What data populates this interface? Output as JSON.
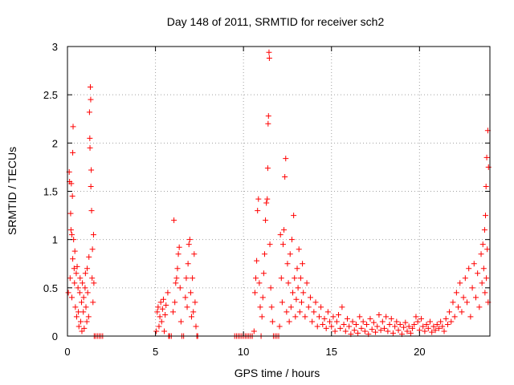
{
  "chart_data": {
    "type": "scatter",
    "title": "Day 148 of 2011, SRMTID for receiver sch2",
    "xlabel": "GPS time / hours",
    "ylabel": "SRMTID / TECUs",
    "xlim": [
      0,
      24
    ],
    "ylim": [
      0,
      3
    ],
    "x_ticks": [
      0,
      5,
      10,
      15,
      20
    ],
    "y_ticks": [
      0,
      0.5,
      1,
      1.5,
      2,
      2.5,
      3
    ],
    "x_tick_labels": [
      "0",
      "5",
      "10",
      "15",
      "20"
    ],
    "y_tick_labels": [
      "0",
      "0.5",
      "1",
      "1.5",
      "2",
      "2.5",
      "3"
    ],
    "grid": true,
    "marker": "plus",
    "color": "#ff0000",
    "series": [
      {
        "name": "sch2",
        "points": [
          [
            0.05,
            0.45
          ],
          [
            0.1,
            1.7
          ],
          [
            0.12,
            1.6
          ],
          [
            0.15,
            0.6
          ],
          [
            0.18,
            1.27
          ],
          [
            0.2,
            1.1
          ],
          [
            0.22,
            1.58
          ],
          [
            0.25,
            0.4
          ],
          [
            0.25,
            1.05
          ],
          [
            0.28,
            1.45
          ],
          [
            0.3,
            0.8
          ],
          [
            0.3,
            1.9
          ],
          [
            0.32,
            2.17
          ],
          [
            0.35,
            1.0
          ],
          [
            0.38,
            0.7
          ],
          [
            0.4,
            0.55
          ],
          [
            0.42,
            0.88
          ],
          [
            0.45,
            0.3
          ],
          [
            0.5,
            0.65
          ],
          [
            0.52,
            0.2
          ],
          [
            0.55,
            0.72
          ],
          [
            0.6,
            0.5
          ],
          [
            0.62,
            0.25
          ],
          [
            0.65,
            0.1
          ],
          [
            0.7,
            0.45
          ],
          [
            0.72,
            0.6
          ],
          [
            0.75,
            0.15
          ],
          [
            0.8,
            0.35
          ],
          [
            0.82,
            0.05
          ],
          [
            0.85,
            0.55
          ],
          [
            0.9,
            0.25
          ],
          [
            0.92,
            0.4
          ],
          [
            0.95,
            0.08
          ],
          [
            1.0,
            0.5
          ],
          [
            1.02,
            0.65
          ],
          [
            1.05,
            0.3
          ],
          [
            1.1,
            0.15
          ],
          [
            1.12,
            0.7
          ],
          [
            1.15,
            0.45
          ],
          [
            1.2,
            0.2
          ],
          [
            1.22,
            0.82
          ],
          [
            1.25,
            2.32
          ],
          [
            1.27,
            2.05
          ],
          [
            1.28,
            1.95
          ],
          [
            1.3,
            2.58
          ],
          [
            1.32,
            2.45
          ],
          [
            1.33,
            1.55
          ],
          [
            1.35,
            1.72
          ],
          [
            1.37,
            1.3
          ],
          [
            1.4,
            0.6
          ],
          [
            1.42,
            0.9
          ],
          [
            1.45,
            0.35
          ],
          [
            1.48,
            1.05
          ],
          [
            1.5,
            0.55
          ],
          [
            1.52,
            0.0
          ],
          [
            1.6,
            0.0
          ],
          [
            1.7,
            0.0
          ],
          [
            1.8,
            0.0
          ],
          [
            1.9,
            0.0
          ],
          [
            2.0,
            0.0
          ],
          [
            5.05,
            0.05
          ],
          [
            5.1,
            0.25
          ],
          [
            5.15,
            0.3
          ],
          [
            5.2,
            0.1
          ],
          [
            5.25,
            0.2
          ],
          [
            5.3,
            0.35
          ],
          [
            5.35,
            0.15
          ],
          [
            5.4,
            0.28
          ],
          [
            5.45,
            0.38
          ],
          [
            5.5,
            0.05
          ],
          [
            5.55,
            0.22
          ],
          [
            5.6,
            0.32
          ],
          [
            5.7,
            0.45
          ],
          [
            5.75,
            0.0
          ],
          [
            5.8,
            0.0
          ],
          [
            5.9,
            0.0
          ],
          [
            6.0,
            0.25
          ],
          [
            6.05,
            1.2
          ],
          [
            6.1,
            0.35
          ],
          [
            6.15,
            0.55
          ],
          [
            6.2,
            0.6
          ],
          [
            6.25,
            0.7
          ],
          [
            6.3,
            0.85
          ],
          [
            6.35,
            0.92
          ],
          [
            6.4,
            0.5
          ],
          [
            6.45,
            0.15
          ],
          [
            6.5,
            0.0
          ],
          [
            6.6,
            0.0
          ],
          [
            6.7,
            0.4
          ],
          [
            6.75,
            0.6
          ],
          [
            6.8,
            0.3
          ],
          [
            6.85,
            0.75
          ],
          [
            6.9,
            0.95
          ],
          [
            6.95,
            1.0
          ],
          [
            7.0,
            0.45
          ],
          [
            7.05,
            0.2
          ],
          [
            7.1,
            0.6
          ],
          [
            7.15,
            0.25
          ],
          [
            7.2,
            0.85
          ],
          [
            7.25,
            0.35
          ],
          [
            7.3,
            0.1
          ],
          [
            7.35,
            0.0
          ],
          [
            7.4,
            0.0
          ],
          [
            9.5,
            0.0
          ],
          [
            9.6,
            0.0
          ],
          [
            9.7,
            0.0
          ],
          [
            9.8,
            0.0
          ],
          [
            9.9,
            0.0
          ],
          [
            10.0,
            0.0
          ],
          [
            10.1,
            0.0
          ],
          [
            10.2,
            0.0
          ],
          [
            10.3,
            0.0
          ],
          [
            10.4,
            0.0
          ],
          [
            10.5,
            0.0
          ],
          [
            10.6,
            0.05
          ],
          [
            10.65,
            0.45
          ],
          [
            10.7,
            0.6
          ],
          [
            10.75,
            0.78
          ],
          [
            10.8,
            1.3
          ],
          [
            10.85,
            1.42
          ],
          [
            10.9,
            0.55
          ],
          [
            10.95,
            0.3
          ],
          [
            11.0,
            0.0
          ],
          [
            11.05,
            0.2
          ],
          [
            11.1,
            0.4
          ],
          [
            11.15,
            0.65
          ],
          [
            11.2,
            0.85
          ],
          [
            11.25,
            1.2
          ],
          [
            11.3,
            1.38
          ],
          [
            11.35,
            1.42
          ],
          [
            11.38,
            1.74
          ],
          [
            11.4,
            2.2
          ],
          [
            11.42,
            2.28
          ],
          [
            11.45,
            2.94
          ],
          [
            11.47,
            2.88
          ],
          [
            11.5,
            0.95
          ],
          [
            11.55,
            0.5
          ],
          [
            11.6,
            0.3
          ],
          [
            11.65,
            0.15
          ],
          [
            11.7,
            0.0
          ],
          [
            11.8,
            0.0
          ],
          [
            11.9,
            0.0
          ],
          [
            12.0,
            0.0
          ],
          [
            12.05,
            0.1
          ],
          [
            12.1,
            1.05
          ],
          [
            12.15,
            0.6
          ],
          [
            12.2,
            0.35
          ],
          [
            12.25,
            0.95
          ],
          [
            12.3,
            1.1
          ],
          [
            12.35,
            1.65
          ],
          [
            12.4,
            1.84
          ],
          [
            12.45,
            0.25
          ],
          [
            12.5,
            0.75
          ],
          [
            12.55,
            0.55
          ],
          [
            12.6,
            0.15
          ],
          [
            12.65,
            0.85
          ],
          [
            12.7,
            0.3
          ],
          [
            12.75,
            1.0
          ],
          [
            12.8,
            0.45
          ],
          [
            12.85,
            1.25
          ],
          [
            12.9,
            0.6
          ],
          [
            12.95,
            0.2
          ],
          [
            13.0,
            0.38
          ],
          [
            13.05,
            0.7
          ],
          [
            13.1,
            0.5
          ],
          [
            13.15,
            0.9
          ],
          [
            13.2,
            0.25
          ],
          [
            13.25,
            0.6
          ],
          [
            13.3,
            0.35
          ],
          [
            13.35,
            0.75
          ],
          [
            13.4,
            0.45
          ],
          [
            13.5,
            0.2
          ],
          [
            13.6,
            0.55
          ],
          [
            13.7,
            0.3
          ],
          [
            13.8,
            0.4
          ],
          [
            13.9,
            0.15
          ],
          [
            14.0,
            0.25
          ],
          [
            14.1,
            0.35
          ],
          [
            14.2,
            0.1
          ],
          [
            14.3,
            0.2
          ],
          [
            14.4,
            0.3
          ],
          [
            14.5,
            0.12
          ],
          [
            14.6,
            0.18
          ],
          [
            14.7,
            0.08
          ],
          [
            14.8,
            0.25
          ],
          [
            14.9,
            0.15
          ],
          [
            15.0,
            0.1
          ],
          [
            15.1,
            0.2
          ],
          [
            15.2,
            0.05
          ],
          [
            15.3,
            0.15
          ],
          [
            15.4,
            0.22
          ],
          [
            15.5,
            0.08
          ],
          [
            15.6,
            0.3
          ],
          [
            15.7,
            0.12
          ],
          [
            15.8,
            0.05
          ],
          [
            15.9,
            0.18
          ],
          [
            16.0,
            0.1
          ],
          [
            16.1,
            0.02
          ],
          [
            16.2,
            0.15
          ],
          [
            16.3,
            0.06
          ],
          [
            16.4,
            0.12
          ],
          [
            16.5,
            0.03
          ],
          [
            16.6,
            0.2
          ],
          [
            16.7,
            0.08
          ],
          [
            16.8,
            0.15
          ],
          [
            16.9,
            0.05
          ],
          [
            17.0,
            0.12
          ],
          [
            17.1,
            0.02
          ],
          [
            17.2,
            0.18
          ],
          [
            17.3,
            0.07
          ],
          [
            17.4,
            0.14
          ],
          [
            17.5,
            0.04
          ],
          [
            17.6,
            0.1
          ],
          [
            17.7,
            0.22
          ],
          [
            17.8,
            0.06
          ],
          [
            17.9,
            0.15
          ],
          [
            18.0,
            0.08
          ],
          [
            18.1,
            0.2
          ],
          [
            18.2,
            0.05
          ],
          [
            18.3,
            0.12
          ],
          [
            18.4,
            0.18
          ],
          [
            18.5,
            0.03
          ],
          [
            18.6,
            0.1
          ],
          [
            18.7,
            0.15
          ],
          [
            18.8,
            0.06
          ],
          [
            18.9,
            0.12
          ],
          [
            19.0,
            0.02
          ],
          [
            19.1,
            0.09
          ],
          [
            19.2,
            0.14
          ],
          [
            19.3,
            0.05
          ],
          [
            19.4,
            0.1
          ],
          [
            19.5,
            0.03
          ],
          [
            19.6,
            0.08
          ],
          [
            19.7,
            0.12
          ],
          [
            19.8,
            0.2
          ],
          [
            19.9,
            0.15
          ],
          [
            20.0,
            0.06
          ],
          [
            20.1,
            0.18
          ],
          [
            20.2,
            0.1
          ],
          [
            20.3,
            0.05
          ],
          [
            20.4,
            0.12
          ],
          [
            20.5,
            0.08
          ],
          [
            20.6,
            0.15
          ],
          [
            20.7,
            0.04
          ],
          [
            20.8,
            0.1
          ],
          [
            20.9,
            0.06
          ],
          [
            21.0,
            0.12
          ],
          [
            21.1,
            0.08
          ],
          [
            21.2,
            0.15
          ],
          [
            21.3,
            0.1
          ],
          [
            21.4,
            0.05
          ],
          [
            21.5,
            0.18
          ],
          [
            21.6,
            0.12
          ],
          [
            21.7,
            0.25
          ],
          [
            21.8,
            0.15
          ],
          [
            21.9,
            0.35
          ],
          [
            22.0,
            0.2
          ],
          [
            22.1,
            0.45
          ],
          [
            22.2,
            0.3
          ],
          [
            22.3,
            0.55
          ],
          [
            22.4,
            0.25
          ],
          [
            22.5,
            0.4
          ],
          [
            22.6,
            0.6
          ],
          [
            22.7,
            0.35
          ],
          [
            22.8,
            0.7
          ],
          [
            22.9,
            0.2
          ],
          [
            23.0,
            0.5
          ],
          [
            23.1,
            0.75
          ],
          [
            23.2,
            0.4
          ],
          [
            23.3,
            0.65
          ],
          [
            23.4,
            0.3
          ],
          [
            23.5,
            0.85
          ],
          [
            23.55,
            0.55
          ],
          [
            23.6,
            0.95
          ],
          [
            23.65,
            0.7
          ],
          [
            23.7,
            1.1
          ],
          [
            23.72,
            0.45
          ],
          [
            23.75,
            1.25
          ],
          [
            23.78,
            1.55
          ],
          [
            23.8,
            0.6
          ],
          [
            23.82,
            1.85
          ],
          [
            23.85,
            0.9
          ],
          [
            23.88,
            2.13
          ],
          [
            23.9,
            0.35
          ],
          [
            23.92,
            1.75
          ]
        ]
      }
    ]
  }
}
